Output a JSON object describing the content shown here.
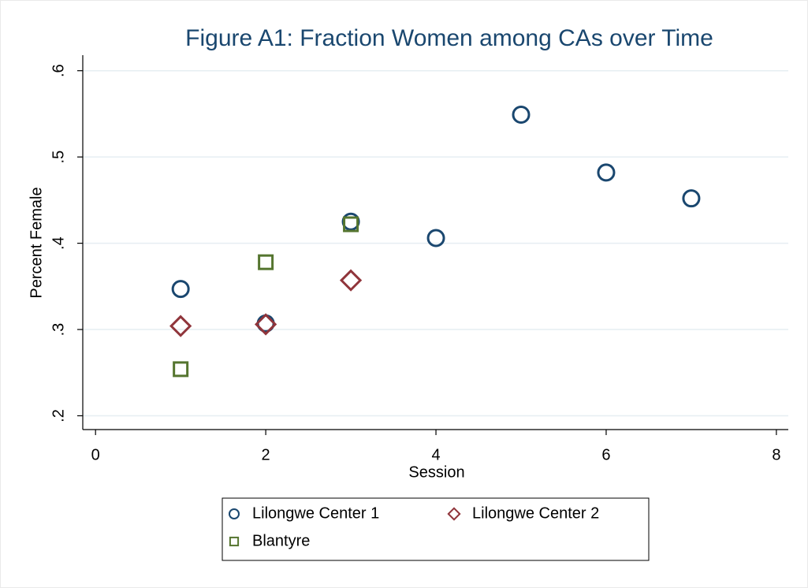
{
  "chart_data": {
    "type": "scatter",
    "title": "Figure A1: Fraction Women among CAs over Time",
    "xlabel": "Session",
    "ylabel": "Percent Female",
    "xlim": [
      -0.15,
      8.14
    ],
    "ylim": [
      0.184,
      0.618
    ],
    "xticks": [
      0,
      2,
      4,
      6,
      8
    ],
    "yticks": [
      {
        "value": 0.2,
        "label": ".2"
      },
      {
        "value": 0.3,
        "label": ".3"
      },
      {
        "value": 0.4,
        "label": ".4"
      },
      {
        "value": 0.5,
        "label": ".5"
      },
      {
        "value": 0.6,
        "label": ".6"
      }
    ],
    "grid": true,
    "series": [
      {
        "name": "Lilongwe Center 1",
        "color": "#1a476f",
        "marker": "circle",
        "x": [
          1,
          2,
          3,
          4,
          5,
          6,
          7
        ],
        "values": [
          0.347,
          0.307,
          0.425,
          0.406,
          0.549,
          0.482,
          0.452
        ]
      },
      {
        "name": "Lilongwe Center 2",
        "color": "#90353b",
        "marker": "diamond",
        "x": [
          1,
          2,
          3
        ],
        "values": [
          0.304,
          0.306,
          0.357
        ]
      },
      {
        "name": "Blantyre",
        "color": "#55752f",
        "marker": "square",
        "x": [
          1,
          2,
          3
        ],
        "values": [
          0.254,
          0.378,
          0.422
        ]
      }
    ]
  }
}
